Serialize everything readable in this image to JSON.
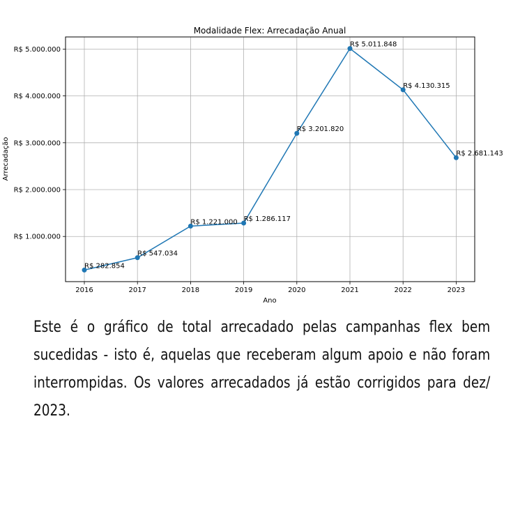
{
  "chart_data": {
    "type": "line",
    "title": "Modalidade Flex: Arrecadação Anual",
    "xlabel": "Ano",
    "ylabel": "Arrecadação",
    "categories": [
      "2016",
      "2017",
      "2018",
      "2019",
      "2020",
      "2021",
      "2022",
      "2023"
    ],
    "series": [
      {
        "values": [
          282854,
          547034,
          1221000,
          1286117,
          3201820,
          5011848,
          4130315,
          2681143
        ],
        "labels": [
          "R$ 282.854",
          "R$ 547.034",
          "R$ 1.221.000",
          "R$ 1.286.117",
          "R$ 3.201.820",
          "R$ 5.011.848",
          "R$ 4.130.315",
          "R$ 2.681.143"
        ],
        "color": "#1f77b4"
      }
    ],
    "yticks": [
      1000000,
      2000000,
      3000000,
      4000000,
      5000000
    ],
    "ytick_labels": [
      "R$ 1.000.000",
      "R$ 2.000.000",
      "R$ 3.000.000",
      "R$ 4.000.000",
      "R$ 5.000.000"
    ],
    "ylim": [
      36005,
      5258697
    ],
    "grid": true
  },
  "caption": "Este é o gráfico de total arrecadado pelas campanhas flex bem sucedidas - isto é, aquelas que receberam algum apoio e não foram interrompidas. Os valores arrecadados já estão corrigidos para dez/ 2023."
}
